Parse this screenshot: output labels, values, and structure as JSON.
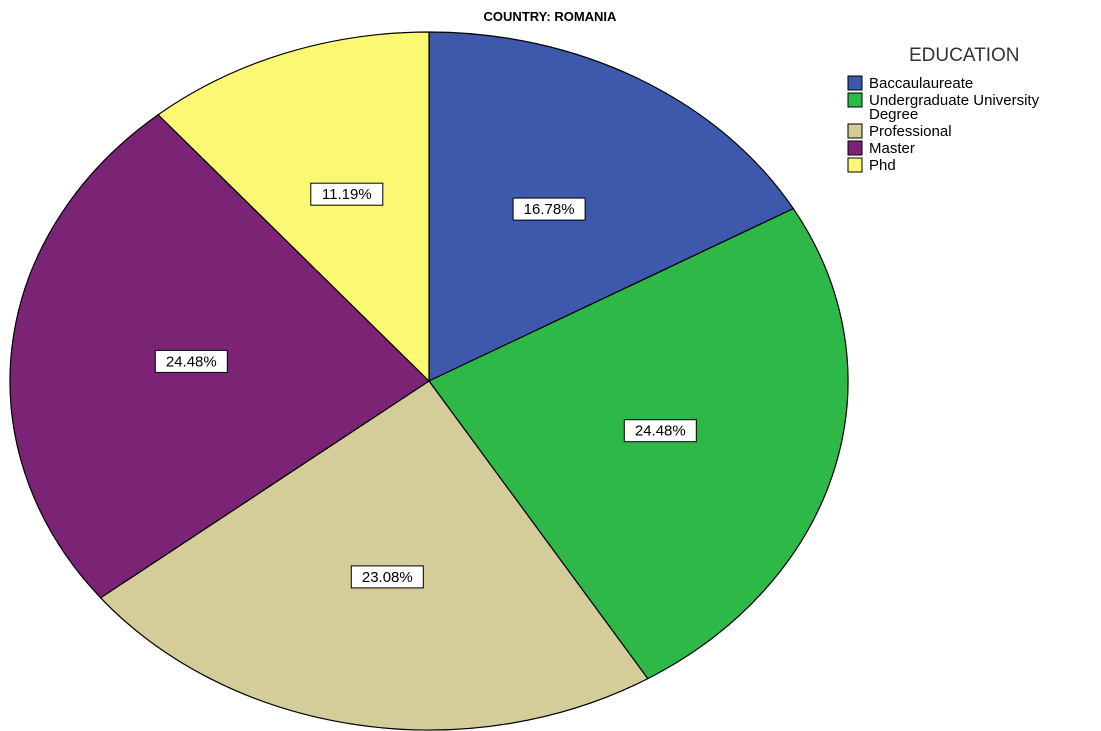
{
  "chart_data": {
    "type": "pie",
    "title": "COUNTRY: ROMANIA",
    "legend_title": "EDUCATION",
    "legend_position": "top-right",
    "start_angle_deg": 0,
    "direction": "clockwise",
    "slices": [
      {
        "label": "Baccaulaureate",
        "value": 16.78,
        "display": "16.78%",
        "color": "#3e58ac"
      },
      {
        "label": "Undergraduate University Degree",
        "value": 24.48,
        "display": "24.48%",
        "color": "#2eb848"
      },
      {
        "label": "Professional",
        "value": 23.08,
        "display": "23.08%",
        "color": "#d4cc99"
      },
      {
        "label": "Master",
        "value": 24.48,
        "display": "24.48%",
        "color": "#7b2476"
      },
      {
        "label": "Phd",
        "value": 11.19,
        "display": "11.19%",
        "color": "#fbf873"
      }
    ]
  }
}
